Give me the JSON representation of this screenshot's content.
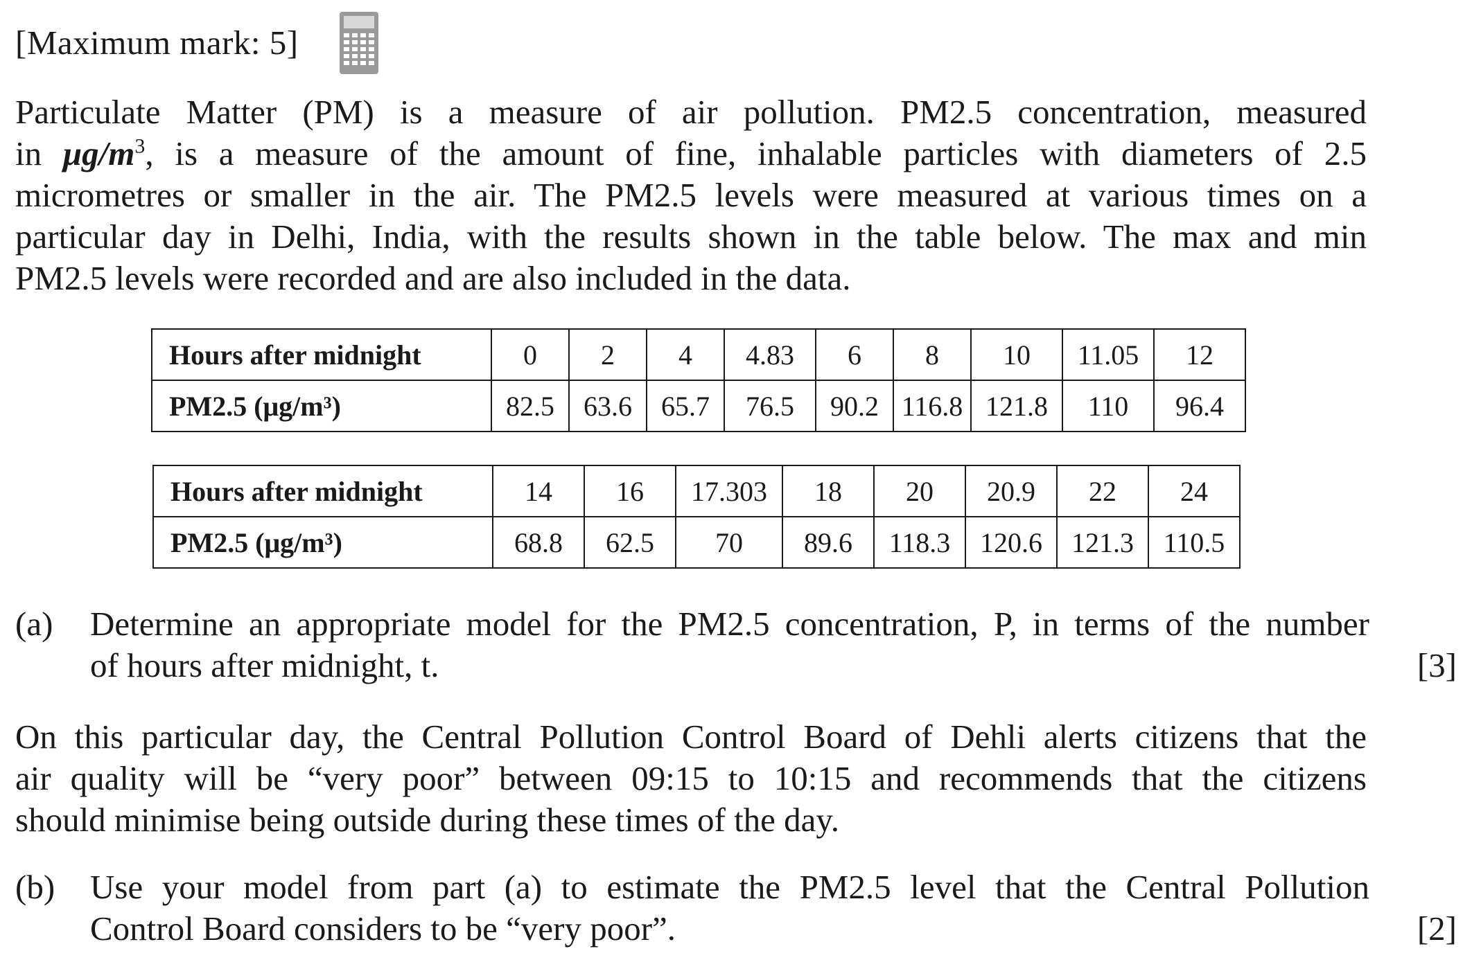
{
  "header": {
    "maximum_mark": "[Maximum mark: 5]",
    "calculator_icon": "calculator-icon"
  },
  "intro": {
    "line1": "Particulate Matter (PM) is a measure of air pollution.  PM2.5 concentration, measured",
    "line2_pre": "in ",
    "line2_unit": "μg/m",
    "line2_post": ", is a measure of the amount of fine, inhalable particles with diameters of 2.5",
    "line3": "micrometres or smaller in the air.  The PM2.5 levels were measured at various times on a",
    "line4": "particular day in Delhi, India, with the results shown in the table below.  The max and min",
    "line5": "PM2.5 levels were recorded and are also included in the data."
  },
  "table1": {
    "row_hours_label": "Hours after midnight",
    "row_pm_label": "PM2.5 (μg/m³)",
    "hours": [
      "0",
      "2",
      "4",
      "4.83",
      "6",
      "8",
      "10",
      "11.05",
      "12"
    ],
    "pm": [
      "82.5",
      "63.6",
      "65.7",
      "76.5",
      "90.2",
      "116.8",
      "121.8",
      "110",
      "96.4"
    ]
  },
  "table2": {
    "row_hours_label": "Hours after midnight",
    "row_pm_label": "PM2.5 (μg/m³)",
    "hours": [
      "14",
      "16",
      "17.303",
      "18",
      "20",
      "20.9",
      "22",
      "24"
    ],
    "pm": [
      "68.8",
      "62.5",
      "70",
      "89.6",
      "118.3",
      "120.6",
      "121.3",
      "110.5"
    ]
  },
  "part_a": {
    "label": "(a)",
    "line1": "Determine an appropriate model for the PM2.5 concentration, P, in terms of the number",
    "line2": "of hours after midnight, t.",
    "marks": "[3]"
  },
  "context": {
    "line1": "On this particular day, the Central Pollution Control Board of Dehli alerts citizens that the",
    "line2": "air quality will be “very poor” between 09:15 to 10:15 and recommends that the citizens",
    "line3": "should minimise being outside during these times of the day."
  },
  "part_b": {
    "label": "(b)",
    "line1": "Use your model from part (a) to estimate the PM2.5 level that the Central Pollution",
    "line2": "Control Board considers to be “very poor”.",
    "marks": "[2]"
  }
}
